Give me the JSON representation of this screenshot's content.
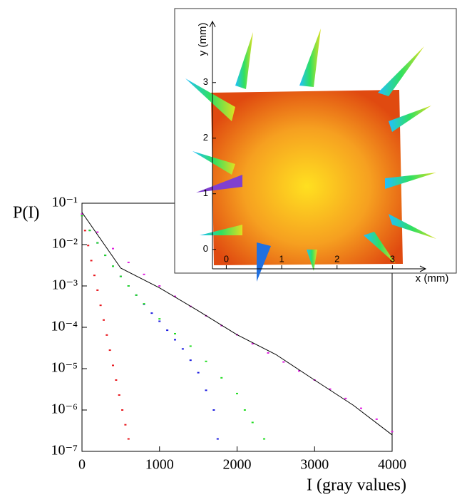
{
  "chart_data": [
    {
      "type": "scatter",
      "yscale": "log",
      "xlabel": "I (gray values)",
      "ylabel": "P(I)",
      "xlim": [
        0,
        4000
      ],
      "xticks": [
        0,
        1000,
        2000,
        3000,
        4000
      ],
      "ylim": [
        1e-07,
        0.1
      ],
      "yticks": [
        {
          "value": 1e-07,
          "label": "10⁻⁷"
        },
        {
          "value": 1e-06,
          "label": "10⁻⁶"
        },
        {
          "value": 1e-05,
          "label": "10⁻⁵"
        },
        {
          "value": 0.0001,
          "label": "10⁻⁴"
        },
        {
          "value": 0.001,
          "label": "10⁻³"
        },
        {
          "value": 0.01,
          "label": "10⁻²"
        },
        {
          "value": 0.1,
          "label": "10⁻¹"
        }
      ],
      "series": [
        {
          "color": "#e8141a",
          "style": "markers",
          "x": [
            0,
            40,
            80,
            120,
            160,
            200,
            240,
            280,
            320,
            360,
            400,
            440,
            480,
            520,
            560,
            600
          ],
          "values": [
            0.05,
            0.0218,
            0.0095,
            0.0041,
            0.0018,
            0.00079,
            0.00034,
            0.00015,
            6.5e-05,
            2.8e-05,
            1.2e-05,
            5.3e-06,
            2.3e-06,
            1e-06,
            4.4e-07,
            2e-07
          ]
        },
        {
          "color": "#1a1ae0",
          "style": "markers",
          "x": [
            0,
            100,
            200,
            300,
            400,
            500,
            600,
            700,
            800,
            900,
            1000,
            1100,
            1200,
            1300,
            1400,
            1500,
            1600,
            1700,
            1750
          ],
          "values": [
            0.05,
            0.022,
            0.011,
            0.0055,
            0.003,
            0.0017,
            0.001,
            0.0006,
            0.00036,
            0.00022,
            0.00014,
            8.5e-05,
            5e-05,
            3e-05,
            1.6e-05,
            8e-06,
            3e-06,
            1e-06,
            2e-07
          ]
        },
        {
          "color": "#22dd22",
          "style": "markers",
          "x": [
            0,
            100,
            200,
            300,
            400,
            500,
            600,
            700,
            800,
            1000,
            1200,
            1400,
            1600,
            1800,
            2000,
            2100,
            2200,
            2350
          ],
          "values": [
            0.05,
            0.022,
            0.011,
            0.0055,
            0.003,
            0.0017,
            0.001,
            0.0006,
            0.00037,
            0.00016,
            7e-05,
            3.5e-05,
            1.5e-05,
            6e-06,
            2.5e-06,
            1e-06,
            5e-07,
            2e-07
          ]
        },
        {
          "color": "#e020e0",
          "style": "markers",
          "x": [
            0,
            200,
            400,
            600,
            800,
            1000,
            1200,
            1400,
            1600,
            1800,
            2000,
            2200,
            2400,
            2600,
            2800,
            3000,
            3200,
            3400,
            3600,
            3800,
            4000
          ],
          "values": [
            0.055,
            0.02,
            0.008,
            0.0037,
            0.0019,
            0.001,
            0.00056,
            0.00032,
            0.00019,
            0.00011,
            6.6e-05,
            4e-05,
            2.4e-05,
            1.45e-05,
            8.8e-06,
            5.3e-06,
            3.2e-06,
            1.9e-06,
            1.1e-06,
            6e-07,
            3e-07
          ]
        },
        {
          "color": "#000000",
          "style": "line",
          "x": [
            0,
            500,
            1000,
            1500,
            2000,
            2500,
            3000,
            3500,
            4000
          ],
          "values": [
            0.06,
            0.0027,
            0.0009,
            0.00025,
            6.6e-05,
            2.2e-05,
            5.3e-06,
            1.3e-06,
            2.5e-07
          ]
        }
      ]
    },
    {
      "type": "image",
      "xlabel": "x (mm)",
      "ylabel": "y (mm)",
      "xlim": [
        -0.25,
        3.6
      ],
      "xticks": [
        0,
        1,
        2,
        3
      ],
      "ylim": [
        -0.35,
        4.1
      ],
      "yticks": [
        0,
        1,
        2,
        3
      ]
    }
  ]
}
